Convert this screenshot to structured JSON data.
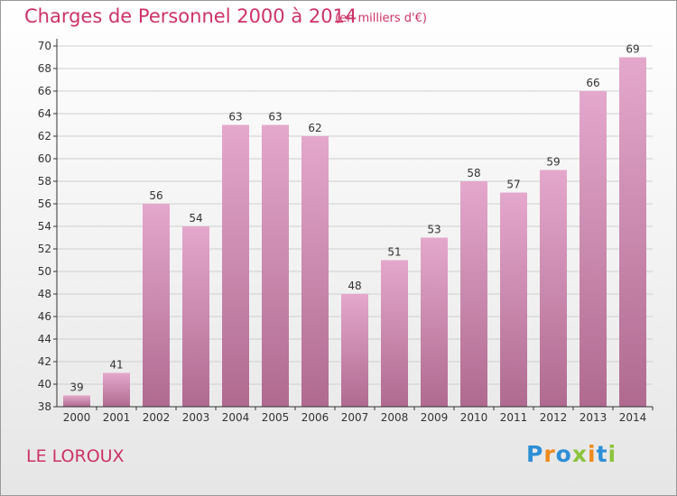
{
  "title": "Charges de Personnel 2000 à 2014",
  "subtitle": "(en milliers d'€)",
  "commune": "LE LOROUX",
  "logo": {
    "text": "Proxiti",
    "letters": [
      {
        "ch": "P",
        "color": "#2e8fd6"
      },
      {
        "ch": "r",
        "color": "#f08a1c"
      },
      {
        "ch": "o",
        "color": "#2e8fd6"
      },
      {
        "ch": "x",
        "color": "#8cc43c"
      },
      {
        "ch": "i",
        "color": "#f08a1c"
      },
      {
        "ch": "t",
        "color": "#2e8fd6"
      },
      {
        "ch": "i",
        "color": "#8cc43c"
      }
    ]
  },
  "colors": {
    "accent": "#cc3366",
    "bar_light": "#e4a8cc",
    "bar_dark": "#b06a90",
    "axis": "#333333",
    "grid": "#cfcfcf"
  },
  "chart_data": {
    "type": "bar",
    "categories": [
      "2000",
      "2001",
      "2002",
      "2003",
      "2004",
      "2005",
      "2006",
      "2007",
      "2008",
      "2009",
      "2010",
      "2011",
      "2012",
      "2013",
      "2014"
    ],
    "values": [
      39,
      41,
      56,
      54,
      63,
      63,
      62,
      48,
      51,
      53,
      58,
      57,
      59,
      66,
      69
    ],
    "data_labels": [
      "39",
      "41",
      "56",
      "54",
      "63",
      "63",
      "62",
      "48",
      "51",
      "53",
      "58",
      "57",
      "59",
      "66",
      "69"
    ],
    "yticks": [
      "38",
      "40",
      "42",
      "44",
      "46",
      "48",
      "50",
      "52",
      "54",
      "56",
      "58",
      "60",
      "62",
      "64",
      "66",
      "68",
      "70"
    ],
    "ylim": [
      38,
      70
    ],
    "grid": true
  }
}
